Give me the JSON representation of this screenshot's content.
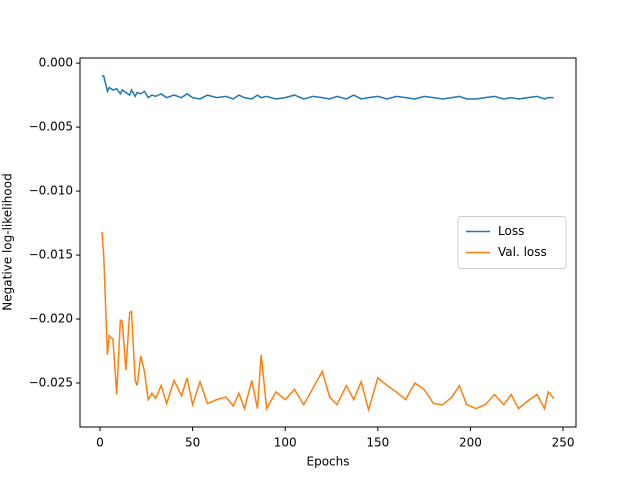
{
  "chart_data": {
    "type": "line",
    "xlabel": "Epochs",
    "ylabel": "Negative log-likelihood",
    "x": [
      1,
      2,
      4,
      5,
      7,
      9,
      11,
      12,
      14,
      16,
      17,
      19,
      20,
      22,
      24,
      26,
      28,
      30,
      33,
      36,
      40,
      44,
      47,
      50,
      54,
      58,
      63,
      68,
      72,
      75,
      78,
      82,
      85,
      87,
      90,
      95,
      100,
      105,
      110,
      115,
      120,
      124,
      128,
      133,
      137,
      141,
      145,
      150,
      155,
      160,
      165,
      170,
      175,
      180,
      185,
      190,
      194,
      198,
      203,
      208,
      213,
      218,
      222,
      226,
      231,
      236,
      240,
      242,
      245
    ],
    "series": [
      {
        "name": "Loss",
        "color": "#1f77b4",
        "values": [
          -0.001,
          -0.001,
          -0.0022,
          -0.0019,
          -0.0021,
          -0.002,
          -0.0024,
          -0.0021,
          -0.0023,
          -0.0025,
          -0.0021,
          -0.0026,
          -0.0023,
          -0.0024,
          -0.0022,
          -0.0027,
          -0.0025,
          -0.0026,
          -0.0024,
          -0.0027,
          -0.0025,
          -0.0027,
          -0.0024,
          -0.0027,
          -0.0028,
          -0.0025,
          -0.0027,
          -0.0026,
          -0.0028,
          -0.0025,
          -0.0027,
          -0.0028,
          -0.0025,
          -0.0027,
          -0.0026,
          -0.0028,
          -0.0027,
          -0.0025,
          -0.0028,
          -0.0026,
          -0.0027,
          -0.0028,
          -0.0026,
          -0.0028,
          -0.0025,
          -0.0028,
          -0.0027,
          -0.0026,
          -0.0028,
          -0.0026,
          -0.0027,
          -0.0028,
          -0.0026,
          -0.0027,
          -0.0028,
          -0.0027,
          -0.0026,
          -0.0028,
          -0.0028,
          -0.0027,
          -0.0026,
          -0.0028,
          -0.0027,
          -0.0028,
          -0.0027,
          -0.0026,
          -0.0028,
          -0.0027,
          -0.0027
        ]
      },
      {
        "name": "Val. loss",
        "color": "#ff7f0e",
        "values": [
          -0.0132,
          -0.015,
          -0.0228,
          -0.0213,
          -0.0216,
          -0.0259,
          -0.0201,
          -0.0202,
          -0.024,
          -0.0195,
          -0.0194,
          -0.0248,
          -0.0252,
          -0.0229,
          -0.0241,
          -0.0263,
          -0.0258,
          -0.0262,
          -0.0252,
          -0.0266,
          -0.0248,
          -0.026,
          -0.0246,
          -0.0267,
          -0.0249,
          -0.0266,
          -0.0263,
          -0.0261,
          -0.0268,
          -0.0258,
          -0.027,
          -0.0248,
          -0.027,
          -0.0228,
          -0.027,
          -0.0257,
          -0.0263,
          -0.0255,
          -0.0267,
          -0.0254,
          -0.0241,
          -0.0261,
          -0.0267,
          -0.0252,
          -0.0263,
          -0.0249,
          -0.0271,
          -0.0246,
          -0.0252,
          -0.0257,
          -0.0263,
          -0.025,
          -0.0255,
          -0.0266,
          -0.0267,
          -0.0261,
          -0.0252,
          -0.0267,
          -0.027,
          -0.0267,
          -0.0259,
          -0.0267,
          -0.0259,
          -0.027,
          -0.0264,
          -0.0259,
          -0.027,
          -0.0257,
          -0.0262
        ]
      }
    ],
    "xlim": [
      -10.8,
      257
    ],
    "ylim": [
      -0.02844,
      0.0004
    ],
    "xticks": [
      0,
      50,
      100,
      150,
      200,
      250
    ],
    "yticks": [
      {
        "value": 0,
        "label": "0.000"
      },
      {
        "value": -0.005,
        "label": "−0.005"
      },
      {
        "value": -0.01,
        "label": "−0.010"
      },
      {
        "value": -0.015,
        "label": "−0.015"
      },
      {
        "value": -0.02,
        "label": "−0.020"
      },
      {
        "value": -0.025,
        "label": "−0.025"
      }
    ],
    "grid": false,
    "legend": "center right"
  }
}
